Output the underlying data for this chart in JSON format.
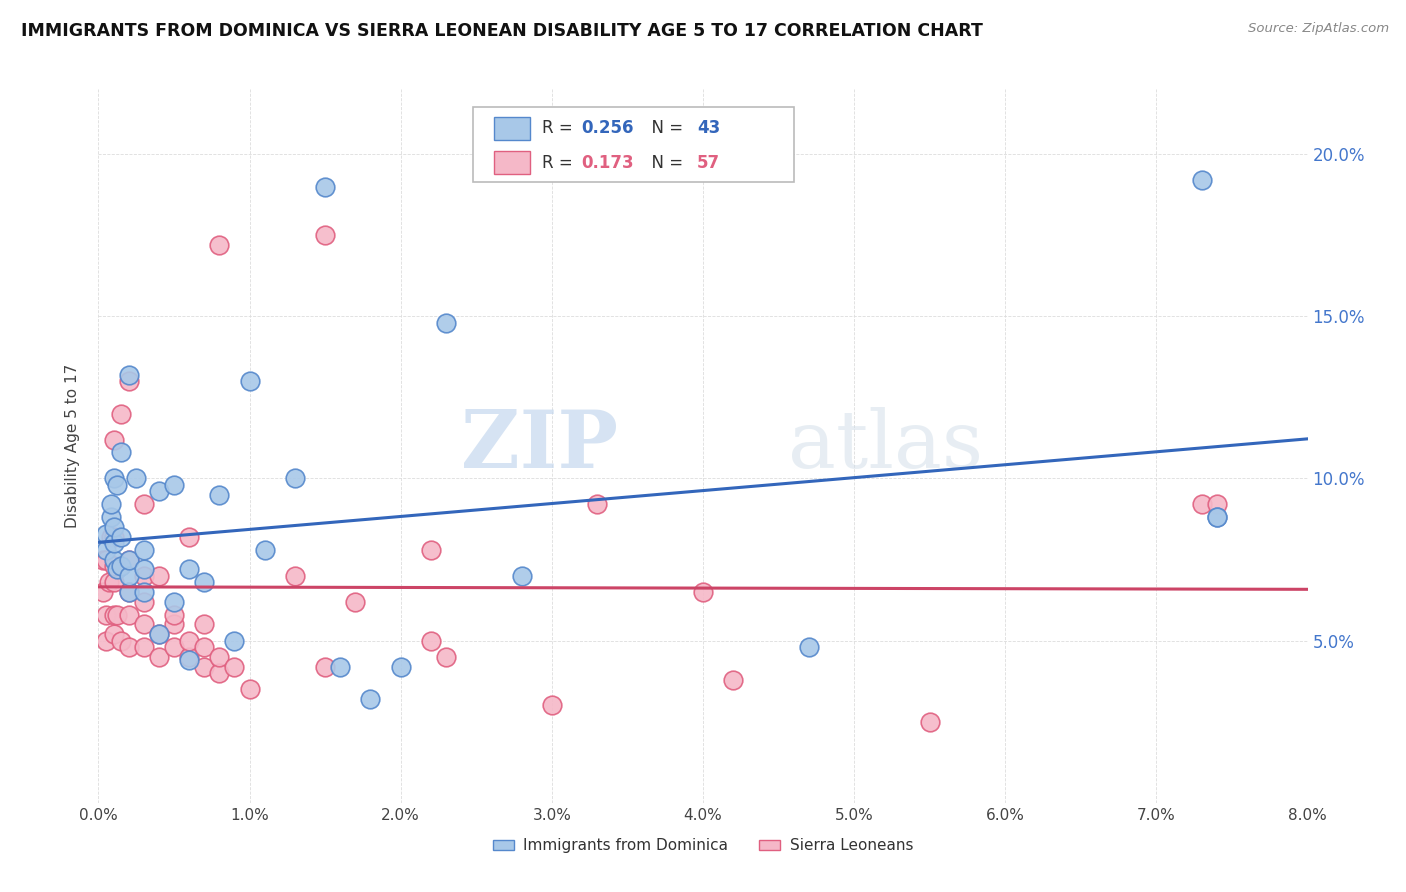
{
  "title": "IMMIGRANTS FROM DOMINICA VS SIERRA LEONEAN DISABILITY AGE 5 TO 17 CORRELATION CHART",
  "source": "Source: ZipAtlas.com",
  "ylabel": "Disability Age 5 to 17",
  "xlim": [
    0.0,
    0.08
  ],
  "ylim": [
    0.0,
    0.22
  ],
  "xticks": [
    0.0,
    0.01,
    0.02,
    0.03,
    0.04,
    0.05,
    0.06,
    0.07,
    0.08
  ],
  "xticklabels": [
    "0.0%",
    "1.0%",
    "2.0%",
    "3.0%",
    "4.0%",
    "5.0%",
    "6.0%",
    "7.0%",
    "8.0%"
  ],
  "yticks": [
    0.0,
    0.05,
    0.1,
    0.15,
    0.2
  ],
  "yticklabels_right": [
    "",
    "5.0%",
    "10.0%",
    "15.0%",
    "20.0%"
  ],
  "blue_color": "#a8c8e8",
  "pink_color": "#f5b8c8",
  "blue_edge_color": "#5588cc",
  "pink_edge_color": "#e06080",
  "blue_line_color": "#3366bb",
  "pink_line_color": "#cc4466",
  "legend_R_blue": "0.256",
  "legend_N_blue": "43",
  "legend_R_pink": "0.173",
  "legend_N_pink": "57",
  "legend_label_blue": "Immigrants from Dominica",
  "legend_label_pink": "Sierra Leoneans",
  "blue_x": [
    0.0005,
    0.0005,
    0.0008,
    0.0008,
    0.001,
    0.001,
    0.001,
    0.001,
    0.0012,
    0.0012,
    0.0015,
    0.0015,
    0.0015,
    0.002,
    0.002,
    0.002,
    0.002,
    0.0025,
    0.003,
    0.003,
    0.003,
    0.004,
    0.004,
    0.005,
    0.005,
    0.006,
    0.006,
    0.007,
    0.008,
    0.009,
    0.01,
    0.011,
    0.013,
    0.015,
    0.016,
    0.018,
    0.02,
    0.023,
    0.028,
    0.047,
    0.073,
    0.074,
    0.074
  ],
  "blue_y": [
    0.078,
    0.083,
    0.088,
    0.092,
    0.075,
    0.08,
    0.085,
    0.1,
    0.072,
    0.098,
    0.073,
    0.082,
    0.108,
    0.065,
    0.07,
    0.075,
    0.132,
    0.1,
    0.065,
    0.072,
    0.078,
    0.052,
    0.096,
    0.098,
    0.062,
    0.072,
    0.044,
    0.068,
    0.095,
    0.05,
    0.13,
    0.078,
    0.1,
    0.19,
    0.042,
    0.032,
    0.042,
    0.148,
    0.07,
    0.048,
    0.192,
    0.088,
    0.088
  ],
  "pink_x": [
    0.0003,
    0.0003,
    0.0005,
    0.0005,
    0.0005,
    0.0007,
    0.0008,
    0.001,
    0.001,
    0.001,
    0.001,
    0.001,
    0.001,
    0.0012,
    0.0015,
    0.0015,
    0.002,
    0.002,
    0.002,
    0.002,
    0.002,
    0.003,
    0.003,
    0.003,
    0.003,
    0.003,
    0.004,
    0.004,
    0.004,
    0.005,
    0.005,
    0.005,
    0.006,
    0.006,
    0.006,
    0.007,
    0.007,
    0.007,
    0.008,
    0.008,
    0.008,
    0.009,
    0.01,
    0.013,
    0.015,
    0.015,
    0.017,
    0.022,
    0.022,
    0.023,
    0.03,
    0.033,
    0.04,
    0.042,
    0.055,
    0.073,
    0.074
  ],
  "pink_y": [
    0.065,
    0.075,
    0.05,
    0.058,
    0.075,
    0.068,
    0.082,
    0.052,
    0.058,
    0.068,
    0.073,
    0.082,
    0.112,
    0.058,
    0.05,
    0.12,
    0.048,
    0.058,
    0.065,
    0.075,
    0.13,
    0.048,
    0.055,
    0.062,
    0.07,
    0.092,
    0.045,
    0.052,
    0.07,
    0.048,
    0.055,
    0.058,
    0.045,
    0.05,
    0.082,
    0.042,
    0.048,
    0.055,
    0.04,
    0.045,
    0.172,
    0.042,
    0.035,
    0.07,
    0.042,
    0.175,
    0.062,
    0.05,
    0.078,
    0.045,
    0.03,
    0.092,
    0.065,
    0.038,
    0.025,
    0.092,
    0.092
  ],
  "watermark_zip": "ZIP",
  "watermark_atlas": "atlas",
  "background_color": "#ffffff",
  "grid_color": "#dddddd",
  "right_tick_color": "#4477cc"
}
